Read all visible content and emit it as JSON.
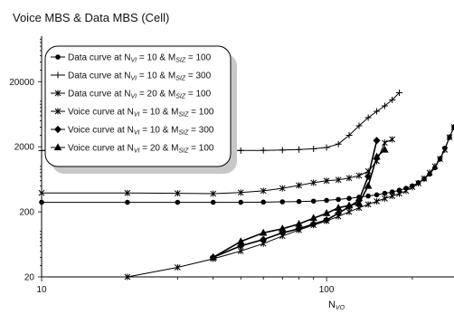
{
  "chart_data": {
    "type": "line",
    "title": "Voice MBS & Data MBS (Cell)",
    "xlabel": "N_VO",
    "xlabel_main": "N",
    "xlabel_sub": "VO",
    "ylabel": "",
    "x_scale": "log",
    "y_scale": "log",
    "xlim": [
      10,
      280
    ],
    "ylim": [
      20,
      100000
    ],
    "x_ticks": [
      {
        "value": 10,
        "label": "10"
      },
      {
        "value": 100,
        "label": "100"
      }
    ],
    "y_ticks": [
      {
        "value": 20,
        "label": "20"
      },
      {
        "value": 200,
        "label": "200"
      },
      {
        "value": 2000,
        "label": "2000"
      },
      {
        "value": 20000,
        "label": "20000"
      }
    ],
    "grid": false,
    "legend_position": "top-left",
    "series": [
      {
        "key": "d_10_100",
        "name": "Data  curve at N",
        "sub1": "VI",
        "mid": " =  10  &  M",
        "sub2": "SIZ",
        "end": " = 100",
        "marker": "circle",
        "x": [
          10,
          20,
          30,
          40,
          50,
          60,
          70,
          80,
          90,
          100,
          110,
          120,
          130,
          140,
          150,
          160,
          170,
          180,
          190,
          200,
          210,
          220,
          230,
          240,
          250,
          260,
          270,
          280
        ],
        "y": [
          280,
          280,
          280,
          280,
          280,
          282,
          285,
          288,
          292,
          300,
          310,
          322,
          336,
          350,
          365,
          385,
          405,
          430,
          460,
          500,
          560,
          640,
          760,
          950,
          1300,
          1900,
          2800,
          4000
        ]
      },
      {
        "key": "d_10_300",
        "name": "Data  curve at N",
        "sub1": "VI",
        "mid": " =  10  &  M",
        "sub2": "SIZ",
        "end": " = 300",
        "marker": "plus",
        "x": [
          10,
          20,
          30,
          40,
          50,
          60,
          70,
          80,
          90,
          100,
          110,
          120,
          130,
          140,
          150,
          160,
          170,
          180
        ],
        "y": [
          1750,
          1750,
          1750,
          1750,
          1750,
          1760,
          1780,
          1810,
          1860,
          1950,
          2200,
          3000,
          4200,
          5600,
          7000,
          8500,
          10500,
          13500
        ]
      },
      {
        "key": "d_20_100",
        "name": "Data  curve at N",
        "sub1": "VI",
        "mid": " =  20  &  M",
        "sub2": "SIZ",
        "end": " = 100",
        "marker": "star",
        "x": [
          10,
          20,
          30,
          40,
          50,
          60,
          70,
          80,
          90,
          100,
          110,
          120,
          130,
          140,
          150,
          160,
          170
        ],
        "y": [
          390,
          390,
          385,
          380,
          395,
          420,
          460,
          510,
          560,
          600,
          620,
          660,
          720,
          840,
          1200,
          2300,
          2600
        ]
      },
      {
        "key": "v_10_100",
        "name": "Voice curve at N",
        "sub1": "VI",
        "mid": " =  10  &  M",
        "sub2": "SIZ",
        "end": " = 100",
        "marker": "star",
        "x": [
          20,
          30,
          40,
          50,
          60,
          70,
          80,
          90,
          100,
          110,
          120,
          130,
          140,
          150,
          160,
          170,
          180,
          190,
          200,
          210,
          220,
          230,
          240,
          250,
          260,
          270,
          280
        ],
        "y": [
          20,
          28,
          38,
          50,
          65,
          85,
          105,
          125,
          145,
          170,
          200,
          230,
          260,
          290,
          320,
          350,
          380,
          420,
          480,
          550,
          650,
          800,
          1000,
          1300,
          1800,
          2800,
          4000
        ]
      },
      {
        "key": "v_10_300",
        "name": "Voice curve at N",
        "sub1": "VI",
        "mid": " =  10  &  M",
        "sub2": "SIZ",
        "end": " = 300",
        "marker": "diamond",
        "x": [
          40,
          50,
          60,
          70,
          80,
          90,
          100,
          110,
          120,
          130,
          140,
          150
        ],
        "y": [
          40,
          60,
          75,
          95,
          110,
          130,
          150,
          190,
          240,
          300,
          700,
          2500
        ]
      },
      {
        "key": "v_20_100",
        "name": "Voice curve at N",
        "sub1": "VI",
        "mid": " =  20  &  M",
        "sub2": "SIZ",
        "end": " = 100",
        "marker": "triangle",
        "x": [
          40,
          50,
          60,
          70,
          80,
          90,
          100,
          110,
          120,
          130,
          140,
          150,
          160
        ],
        "y": [
          40,
          70,
          95,
          110,
          130,
          160,
          190,
          230,
          250,
          270,
          500,
          1400,
          1800
        ]
      }
    ]
  }
}
